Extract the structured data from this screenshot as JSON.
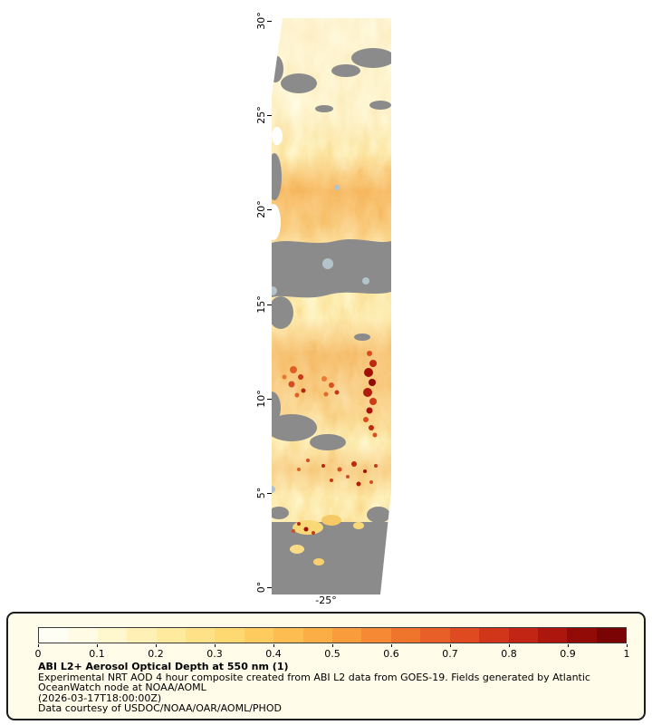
{
  "figure": {
    "background_color": "#ffffff",
    "map": {
      "name": "GOES-19 ABI aerosol optical depth swath",
      "no_data_color": "#8b8b8b",
      "y_ticks": [
        "30°",
        "25°",
        "20°",
        "15°",
        "10°",
        "5°",
        "0°"
      ],
      "x_ticks": [
        "-25°"
      ]
    },
    "legend": {
      "background_color": "#fffce9",
      "border_color": "#1c1c1c",
      "colorbar": {
        "min": 0,
        "max": 1,
        "ticks": [
          "0",
          "0.1",
          "0.2",
          "0.3",
          "0.4",
          "0.5",
          "0.6",
          "0.7",
          "0.8",
          "0.9",
          "1"
        ],
        "segment_colors": [
          "#fffef4",
          "#fffbe4",
          "#fff7ce",
          "#fff1b6",
          "#ffea9e",
          "#ffe287",
          "#fed871",
          "#fecb5f",
          "#fdbd50",
          "#fbae45",
          "#f99c3c",
          "#f58934",
          "#ef752d",
          "#e86027",
          "#df4a20",
          "#d2361a",
          "#c22513",
          "#ac160c",
          "#930b06",
          "#7a0403"
        ]
      },
      "title": "ABI L2+ Aerosol Optical Depth at 550 nm (1)",
      "line1": "Experimental NRT AOD 4 hour composite created from ABI L2 data from GOES-19. Fields generated by Atlantic",
      "line2": "OceanWatch node at NOAA/AOML",
      "line3": "(2026-03-17T18:00:00Z)",
      "line4": "Data courtesy of USDOC/NOAA/OAR/AOML/PHOD"
    }
  },
  "chart_data": {
    "type": "heatmap",
    "title": "ABI L2+ Aerosol Optical Depth at 550 nm (1)",
    "units": "aerosol optical depth at 550 nm (dimensionless)",
    "x_tick_labels": [
      "-25°"
    ],
    "y_tick_labels": [
      "30°",
      "25°",
      "20°",
      "15°",
      "10°",
      "5°",
      "0°"
    ],
    "y_range_deg": [
      0,
      30
    ],
    "colorbar_range": [
      0,
      1
    ],
    "colorbar_tick_labels": [
      "0",
      "0.1",
      "0.2",
      "0.3",
      "0.4",
      "0.5",
      "0.6",
      "0.7",
      "0.8",
      "0.9",
      "1"
    ],
    "legend_position": "bottom",
    "no_data_shown_as": "gray",
    "latitude_bands": [
      {
        "lat_range": [
          24,
          30
        ],
        "typical_aod": 0.15,
        "note": "pale yellow haze with scattered gray no-data gaps"
      },
      {
        "lat_range": [
          18,
          24
        ],
        "typical_aod": 0.35,
        "note": "moderate dust plume, yellow-orange"
      },
      {
        "lat_range": [
          15,
          18
        ],
        "typical_aod": null,
        "note": "mostly no data (gray band), few pale blue-gray cloud spots"
      },
      {
        "lat_range": [
          8,
          15
        ],
        "typical_aod": 0.4,
        "max_aod": 0.85,
        "note": "dense plume with dark-red high-AOD cores near 10-12° on the east side"
      },
      {
        "lat_range": [
          4,
          8
        ],
        "typical_aod": 0.3,
        "max_aod": 0.8,
        "note": "patchy plume with red speckles"
      },
      {
        "lat_range": [
          0,
          4
        ],
        "typical_aod": null,
        "note": "mostly no data (gray)"
      }
    ]
  }
}
